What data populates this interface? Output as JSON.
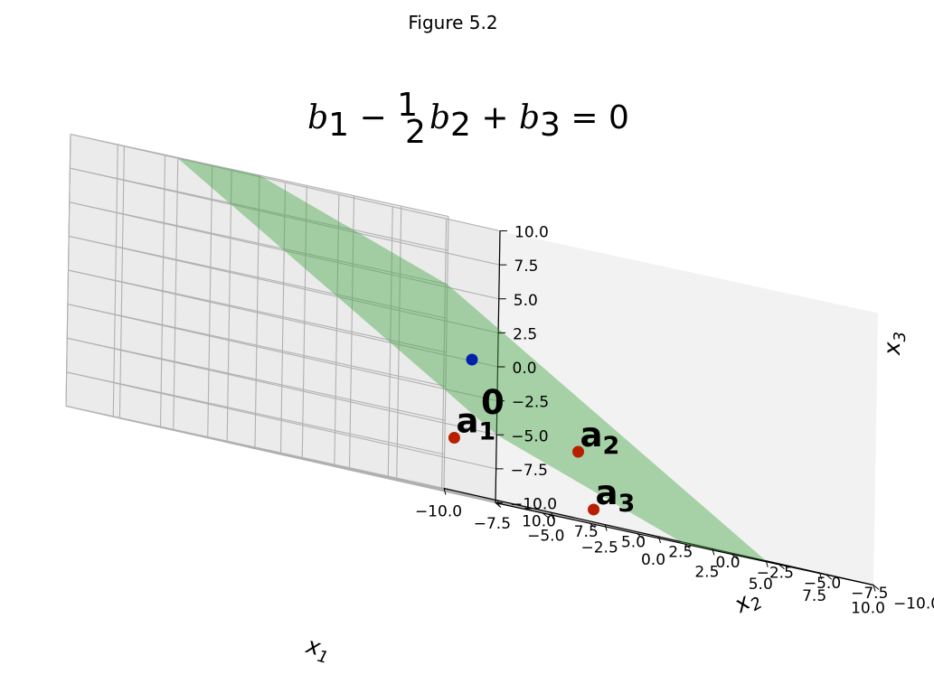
{
  "figure_title": "Figure 5.2",
  "colors": {
    "plane": "#a8d0a8",
    "pane_left": "#ebebeb",
    "pane_right": "#f2f2f2",
    "pane_floor": "#f5f5f5",
    "grid": "#b0b0b0",
    "point_red": "#b81e00",
    "point_blue": "#0022aa"
  },
  "chart_data": {
    "type": "scatter",
    "title": "b1 − ½ b2 + b3 = 0",
    "title_parts": {
      "b": "b",
      "minus": "−",
      "frac_num": "1",
      "frac_den": "2",
      "plus": "+",
      "equals": "=",
      "zero": "0",
      "sub1": "1",
      "sub2": "2",
      "sub3": "3"
    },
    "xlabel": "x1",
    "ylabel": "x2",
    "zlabel": "x3",
    "label_parts": {
      "x": "x",
      "sub1": "1",
      "sub2": "2",
      "sub3": "3"
    },
    "xlim": [
      -10,
      10
    ],
    "ylim": [
      -10,
      10
    ],
    "zlim": [
      -10,
      10
    ],
    "ticks": [
      "−10.0",
      "−7.5",
      "−5.0",
      "−2.5",
      "0.0",
      "2.5",
      "5.0",
      "7.5",
      "10.0"
    ],
    "tick_values": [
      -10,
      -7.5,
      -5,
      -2.5,
      0,
      2.5,
      5,
      7.5,
      10
    ],
    "grid": true,
    "plane": {
      "equation": "b1 - 0.5*b2 + b3 = 0",
      "color": "green",
      "alpha": 0.35
    },
    "points": [
      {
        "name": "a1",
        "label_main": "a",
        "label_sub": "1",
        "color": "red",
        "x": 1,
        "y": 2,
        "z": -6
      },
      {
        "name": "a2",
        "label_main": "a",
        "label_sub": "2",
        "color": "red",
        "x": 5,
        "y": 0,
        "z": -5
      },
      {
        "name": "a3",
        "label_main": "a",
        "label_sub": "3",
        "color": "red",
        "x": 4,
        "y": -2,
        "z": -9
      },
      {
        "name": "origin",
        "label_main": "0",
        "label_sub": "",
        "color": "blue",
        "x": 0,
        "y": 0,
        "z": 0
      }
    ]
  }
}
